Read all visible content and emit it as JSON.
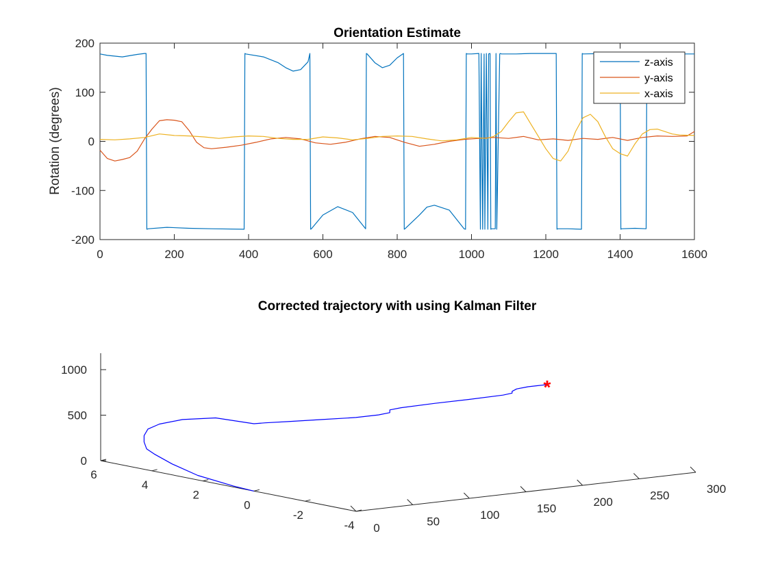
{
  "chart_data": [
    {
      "type": "line",
      "title": "Orientation Estimate",
      "xlabel": "",
      "ylabel": "Rotation (degrees)",
      "xlim": [
        0,
        1600
      ],
      "ylim": [
        -200,
        200
      ],
      "x_ticks": [
        0,
        200,
        400,
        600,
        800,
        1000,
        1200,
        1400,
        1600
      ],
      "y_ticks": [
        -200,
        -100,
        0,
        100,
        200
      ],
      "grid": false,
      "legend_position": "top-right",
      "series": [
        {
          "name": "z-axis",
          "color": "#0072BD",
          "x": [
            0,
            20,
            60,
            100,
            120,
            124,
            126,
            130,
            180,
            240,
            300,
            388,
            390,
            392,
            440,
            480,
            500,
            520,
            540,
            560,
            565,
            567,
            569,
            600,
            640,
            680,
            715,
            717,
            719,
            740,
            760,
            780,
            800,
            817,
            819,
            821,
            860,
            880,
            900,
            940,
            980,
            984,
            986,
            988,
            1000,
            1020,
            1024,
            1026,
            1030,
            1034,
            1036,
            1040,
            1044,
            1046,
            1050,
            1052,
            1054,
            1064,
            1066,
            1068,
            1076,
            1078,
            1080,
            1120,
            1160,
            1200,
            1228,
            1230,
            1232,
            1260,
            1296,
            1298,
            1300,
            1360,
            1400,
            1402,
            1404,
            1440,
            1470,
            1472,
            1474,
            1520,
            1560,
            1600
          ],
          "y": [
            178,
            175,
            172,
            177,
            179,
            179,
            -179,
            -178,
            -175,
            -177,
            -178,
            -179,
            179,
            178,
            172,
            160,
            150,
            143,
            146,
            162,
            179,
            -179,
            -178,
            -150,
            -133,
            -145,
            -178,
            179,
            178,
            160,
            150,
            155,
            170,
            179,
            -179,
            -178,
            -150,
            -134,
            -130,
            -140,
            -178,
            -179,
            179,
            178,
            178,
            179,
            -179,
            179,
            -179,
            178,
            -179,
            179,
            -179,
            178,
            179,
            -179,
            -178,
            -178,
            179,
            -179,
            178,
            179,
            178,
            178,
            179,
            179,
            179,
            -179,
            -178,
            -178,
            -179,
            179,
            178,
            179,
            179,
            -179,
            -178,
            -177,
            -178,
            179,
            178,
            178,
            178,
            178
          ]
        },
        {
          "name": "y-axis",
          "color": "#D95319",
          "x": [
            0,
            20,
            40,
            60,
            80,
            100,
            120,
            140,
            160,
            180,
            200,
            220,
            240,
            260,
            280,
            300,
            340,
            380,
            420,
            460,
            500,
            540,
            580,
            620,
            660,
            700,
            740,
            780,
            820,
            860,
            900,
            940,
            980,
            1020,
            1060,
            1100,
            1140,
            1180,
            1220,
            1260,
            1300,
            1340,
            1380,
            1420,
            1460,
            1500,
            1540,
            1580,
            1600
          ],
          "y": [
            -18,
            -35,
            -40,
            -37,
            -33,
            -20,
            5,
            25,
            42,
            44,
            43,
            40,
            22,
            -2,
            -13,
            -15,
            -12,
            -8,
            -2,
            5,
            8,
            5,
            -3,
            -6,
            -2,
            5,
            10,
            8,
            -2,
            -10,
            -6,
            0,
            4,
            6,
            8,
            6,
            10,
            3,
            5,
            2,
            6,
            4,
            8,
            2,
            8,
            11,
            10,
            11,
            20
          ]
        },
        {
          "name": "x-axis",
          "color": "#EDB120",
          "x": [
            0,
            40,
            80,
            120,
            160,
            200,
            240,
            280,
            320,
            360,
            400,
            440,
            480,
            520,
            560,
            600,
            640,
            680,
            720,
            760,
            800,
            840,
            880,
            920,
            960,
            1000,
            1040,
            1060,
            1080,
            1100,
            1120,
            1140,
            1160,
            1180,
            1200,
            1220,
            1240,
            1260,
            1280,
            1300,
            1320,
            1340,
            1360,
            1380,
            1400,
            1420,
            1440,
            1460,
            1480,
            1500,
            1520,
            1540,
            1560,
            1600
          ],
          "y": [
            4,
            3,
            5,
            8,
            15,
            12,
            11,
            9,
            6,
            9,
            11,
            10,
            6,
            4,
            4,
            9,
            7,
            3,
            6,
            10,
            11,
            10,
            5,
            1,
            3,
            8,
            6,
            10,
            20,
            40,
            58,
            60,
            35,
            10,
            -15,
            -35,
            -40,
            -20,
            20,
            48,
            55,
            40,
            10,
            -15,
            -25,
            -30,
            -5,
            15,
            24,
            25,
            20,
            15,
            13,
            12
          ]
        }
      ]
    },
    {
      "type": "line3d",
      "title": "Corrected trajectory with using Kalman Filter",
      "xlim": [
        0,
        300
      ],
      "ylim": [
        -4,
        6
      ],
      "zlim": [
        0,
        1000
      ],
      "x_ticks": [
        0,
        50,
        100,
        150,
        200,
        250,
        300
      ],
      "y_ticks": [
        -4,
        -2,
        0,
        2,
        4,
        6
      ],
      "z_ticks": [
        0,
        500,
        1000
      ],
      "grid": false,
      "series": [
        {
          "color": "#0000FF",
          "points": [
            [
              0,
              0,
              0
            ],
            [
              0,
              0.8,
              10
            ],
            [
              0,
              2.2,
              50
            ],
            [
              0,
              3.2,
              120
            ],
            [
              0,
              3.9,
              190
            ],
            [
              0,
              4.2,
              230
            ],
            [
              0,
              4.3,
              300
            ],
            [
              0,
              4.3,
              370
            ],
            [
              0,
              4.15,
              450
            ],
            [
              0,
              3.7,
              530
            ],
            [
              0,
              2.8,
              630
            ],
            [
              0,
              1.5,
              720
            ],
            [
              0,
              0,
              740
            ],
            [
              10,
              0,
              735
            ],
            [
              30,
              0,
              720
            ],
            [
              60,
              0,
              700
            ],
            [
              90,
              0,
              680
            ],
            [
              110,
              0,
              680
            ],
            [
              120,
              0,
              690
            ],
            [
              120,
              0,
              720
            ],
            [
              130,
              0,
              730
            ],
            [
              160,
              0,
              735
            ],
            [
              190,
              0,
              735
            ],
            [
              220,
              0,
              740
            ],
            [
              228,
              0,
              750
            ],
            [
              228,
              0,
              770
            ],
            [
              232,
              0,
              790
            ],
            [
              242,
              0,
              800
            ],
            [
              250,
              0,
              800
            ],
            [
              259,
              0,
              800
            ]
          ],
          "end_marker": {
            "symbol": "*",
            "color": "#FF0000",
            "point": [
              259,
              0,
              800
            ]
          }
        }
      ]
    }
  ]
}
